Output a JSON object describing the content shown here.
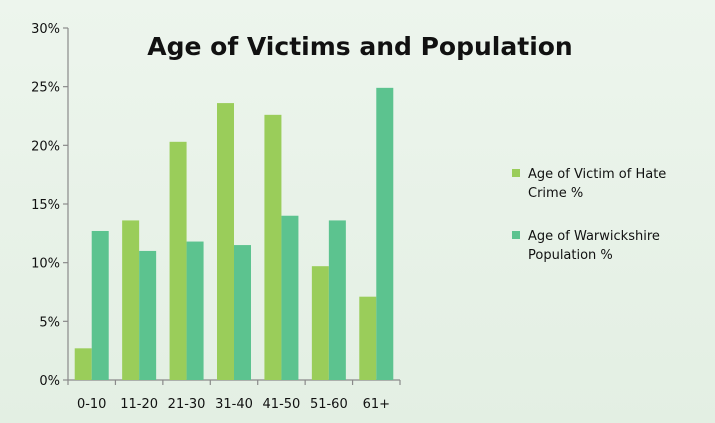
{
  "chart_data": {
    "type": "bar",
    "title": "Age of Victims and Population",
    "xlabel": "",
    "ylabel": "",
    "categories": [
      "0-10",
      "11-20",
      "21-30",
      "31-40",
      "41-50",
      "51-60",
      "61+"
    ],
    "series": [
      {
        "name": "Age of Victim of Hate Crime %",
        "legend_lines": [
          "Age of Victim of Hate",
          "Crime %"
        ],
        "color": "#9acd5a",
        "values": [
          2.7,
          13.6,
          20.3,
          23.6,
          22.6,
          9.7,
          7.1
        ]
      },
      {
        "name": "Age of Warwickshire Population %",
        "legend_lines": [
          "Age of Warwickshire",
          "Population  %"
        ],
        "color": "#5cc38f",
        "values": [
          12.7,
          11.0,
          11.8,
          11.5,
          14.0,
          13.6,
          24.9
        ]
      }
    ],
    "ylim": [
      0,
      30
    ],
    "yticks": [
      0,
      5,
      10,
      15,
      20,
      25,
      30
    ],
    "ytick_labels": [
      "0%",
      "5%",
      "10%",
      "15%",
      "20%",
      "25%",
      "30%"
    ],
    "grid": false,
    "legend_position": "right"
  }
}
